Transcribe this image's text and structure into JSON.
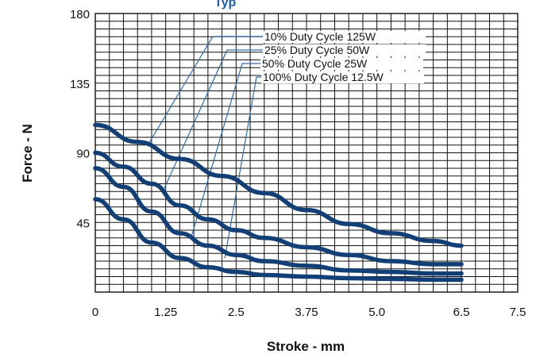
{
  "chart_data": {
    "type": "line",
    "title": "Typ",
    "xlabel": "Stroke - mm",
    "ylabel": "Force - N",
    "xlim": [
      0,
      7.5
    ],
    "ylim": [
      0,
      180
    ],
    "x_ticks": [
      "0",
      "1.25",
      "2.5",
      "3.75",
      "5.0",
      "6.5",
      "7.5"
    ],
    "x_tick_values": [
      0,
      1.25,
      2.5,
      3.75,
      5.0,
      6.5,
      7.5
    ],
    "y_ticks": [
      "45",
      "90",
      "135",
      "180"
    ],
    "y_tick_values": [
      45,
      90,
      135,
      180
    ],
    "grid": true,
    "line_color": "#123f75",
    "leader_color": "#2e6aa8",
    "series": [
      {
        "name": "10% Duty Cycle 125W",
        "x": [
          0,
          0.75,
          1.5,
          2.25,
          3.0,
          3.75,
          4.5,
          5.25,
          6.0,
          6.5
        ],
        "y": [
          108,
          97,
          86,
          75,
          64,
          53,
          44,
          38,
          33,
          30
        ]
      },
      {
        "name": "25% Duty Cycle 50W",
        "x": [
          0,
          0.5,
          1.0,
          1.5,
          2.0,
          2.5,
          3.0,
          3.75,
          4.5,
          5.25,
          6.0,
          6.5
        ],
        "y": [
          90,
          81,
          70,
          56,
          47,
          40,
          35,
          29,
          24,
          20,
          18,
          18
        ]
      },
      {
        "name": "50% Duty Cycle 25W",
        "x": [
          0,
          0.5,
          1.0,
          1.5,
          2.0,
          2.5,
          3.0,
          3.75,
          4.5,
          5.25,
          6.0,
          6.5
        ],
        "y": [
          80,
          68,
          52,
          38,
          30,
          24,
          20,
          17,
          14,
          13,
          12,
          12
        ]
      },
      {
        "name": "100% Duty Cycle 12.5W",
        "x": [
          0,
          0.5,
          1.0,
          1.5,
          2.0,
          2.5,
          3.0,
          3.75,
          4.5,
          5.25,
          6.0,
          6.5
        ],
        "y": [
          60,
          47,
          32,
          22,
          16,
          13,
          11,
          10,
          9,
          8.5,
          8,
          8
        ]
      }
    ],
    "annotations": [
      {
        "series": 0,
        "label": "10% Duty Cycle 125W",
        "point": [
          0.95,
          96
        ]
      },
      {
        "series": 1,
        "label": "25% Duty Cycle 50W",
        "point": [
          1.2,
          65
        ]
      },
      {
        "series": 2,
        "label": "50% Duty Cycle 25W",
        "point": [
          1.7,
          35
        ]
      },
      {
        "series": 3,
        "label": "100% Duty Cycle 12.5W",
        "point": [
          2.3,
          22
        ]
      }
    ]
  }
}
